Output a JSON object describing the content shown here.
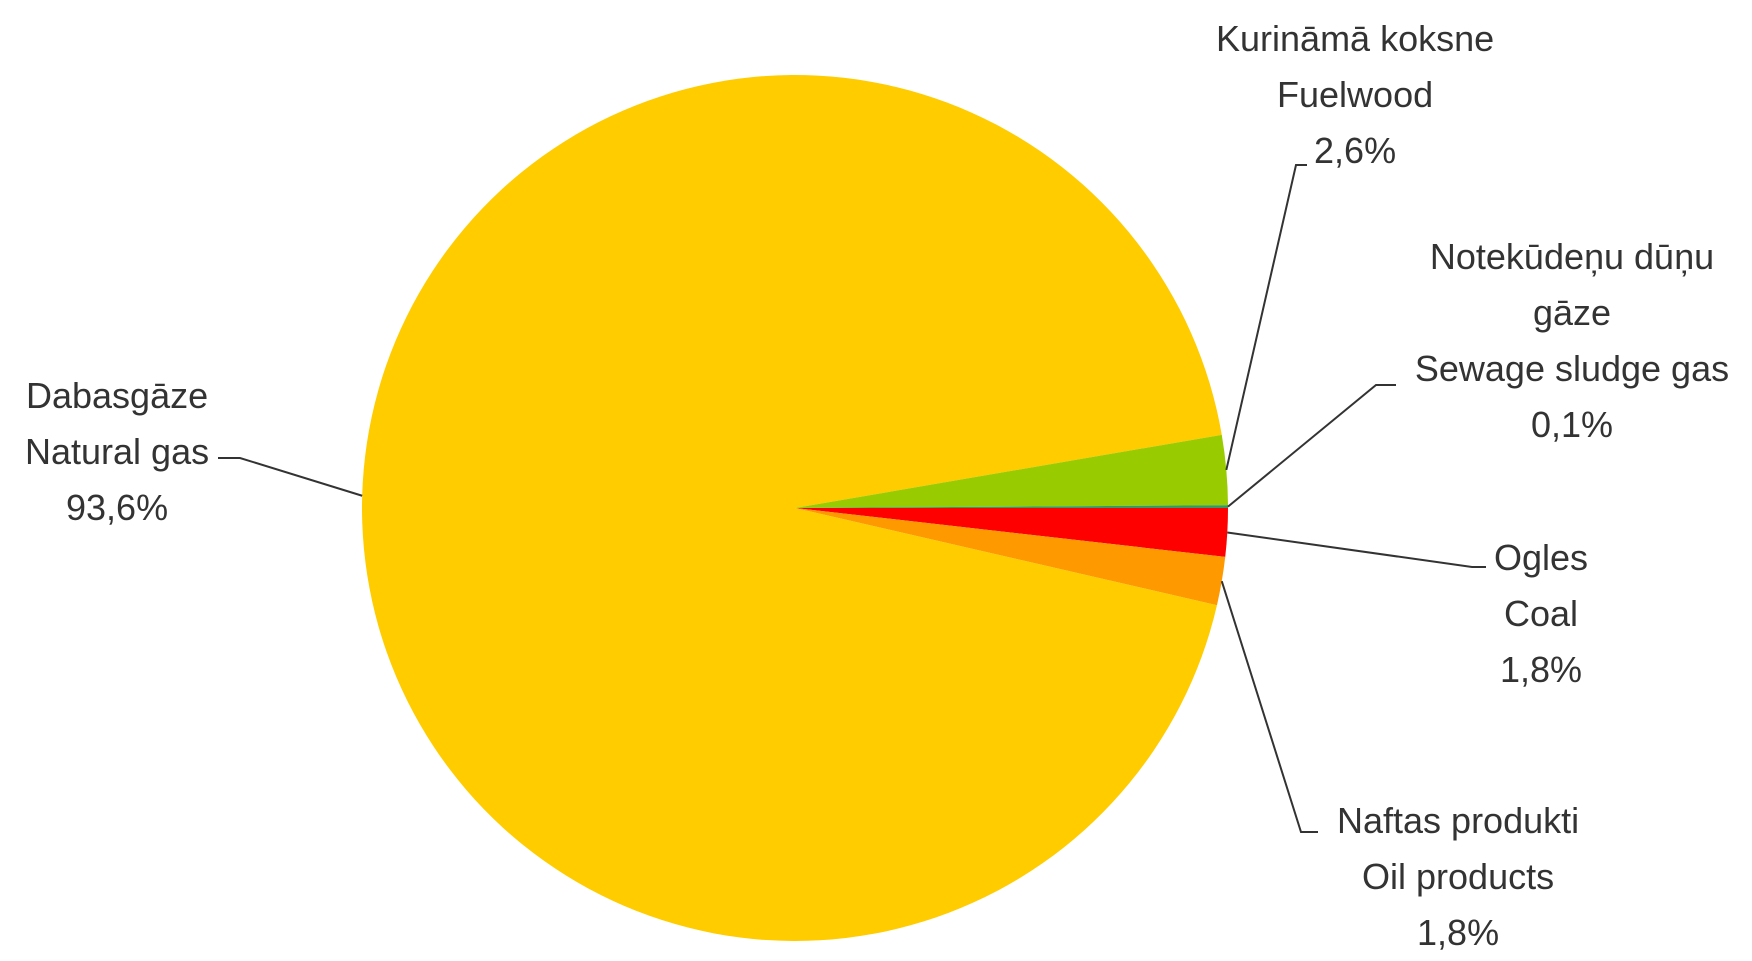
{
  "chart_data": {
    "type": "pie",
    "categories": [
      [
        "Ogles",
        "Coal"
      ],
      [
        "Naftas produkti",
        "Oil products"
      ],
      [
        "Dabasgāze",
        "Natural gas"
      ],
      [
        "Kurināmā koksne",
        "Fuelwood"
      ],
      [
        "Notekūdeņu dūņu gāze",
        "Sewage sludge gas"
      ]
    ],
    "values": [
      1.8,
      1.8,
      93.6,
      2.6,
      0.1
    ],
    "value_labels": [
      "1,8%",
      "1,8%",
      "93,6%",
      "2,6%",
      "0,1%"
    ],
    "colors": [
      "#ff0000",
      "#ff9900",
      "#ffcc00",
      "#99cc00",
      "#339966"
    ]
  }
}
